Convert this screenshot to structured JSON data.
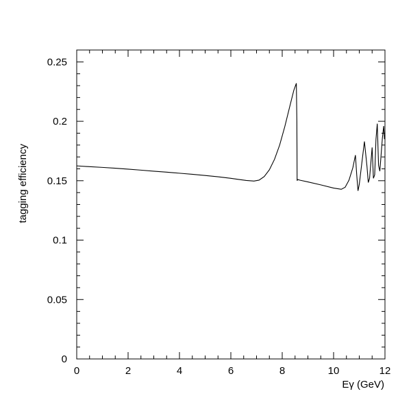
{
  "chart_data": {
    "type": "line",
    "title": "",
    "xlabel": "Eγ (GeV)",
    "ylabel": "tagging efficiency",
    "xlim": [
      0,
      12
    ],
    "ylim": [
      0,
      0.26
    ],
    "x_ticks": [
      "0",
      "2",
      "4",
      "6",
      "8",
      "10",
      "12"
    ],
    "y_ticks": [
      "0",
      "0.05",
      "0.1",
      "0.15",
      "0.2",
      "0.25"
    ],
    "grid": false,
    "legend": "none",
    "line_color": "#000000",
    "series": [
      {
        "x": [
          0,
          0.5,
          1,
          1.5,
          2,
          2.5,
          3,
          3.5,
          4,
          4.5,
          5,
          5.5,
          6,
          6.3,
          6.6,
          6.9,
          7.1,
          7.3,
          7.5,
          7.7,
          7.9,
          8.1,
          8.3,
          8.45,
          8.55,
          8.57,
          8.58,
          8.6,
          8.7,
          9.0,
          9.5,
          10.0,
          10.3,
          10.45,
          10.6,
          10.75,
          10.85,
          10.9,
          10.95,
          11.0,
          11.1,
          11.2,
          11.3,
          11.35,
          11.4,
          11.45,
          11.5,
          11.55,
          11.6,
          11.65,
          11.7,
          11.75,
          11.8,
          11.85,
          11.9,
          11.95,
          11.98
        ],
        "y": [
          0.1625,
          0.1618,
          0.1612,
          0.1605,
          0.1597,
          0.1589,
          0.158,
          0.1572,
          0.1563,
          0.1554,
          0.1544,
          0.1533,
          0.152,
          0.1511,
          0.1502,
          0.1497,
          0.1505,
          0.1535,
          0.1592,
          0.168,
          0.18,
          0.1955,
          0.213,
          0.226,
          0.232,
          0.2,
          0.15,
          0.151,
          0.1504,
          0.149,
          0.1465,
          0.1438,
          0.1428,
          0.1445,
          0.1505,
          0.161,
          0.1715,
          0.155,
          0.1415,
          0.147,
          0.165,
          0.183,
          0.162,
          0.1485,
          0.152,
          0.165,
          0.178,
          0.152,
          0.155,
          0.185,
          0.198,
          0.163,
          0.158,
          0.172,
          0.186,
          0.196,
          0.185
        ]
      }
    ]
  }
}
